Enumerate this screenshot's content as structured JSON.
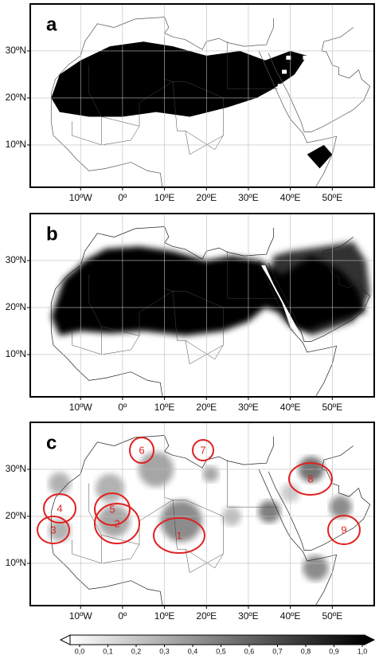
{
  "map": {
    "xlim": [
      -22,
      60
    ],
    "ylim": [
      1,
      40
    ],
    "xticks": [
      {
        "value": -10,
        "label": "10ºW"
      },
      {
        "value": 0,
        "label": "0º"
      },
      {
        "value": 10,
        "label": "10ºE"
      },
      {
        "value": 20,
        "label": "20ºE"
      },
      {
        "value": 30,
        "label": "30ºE"
      },
      {
        "value": 40,
        "label": "40ºE"
      },
      {
        "value": 50,
        "label": "50ºE"
      }
    ],
    "yticks": [
      {
        "value": 10,
        "label": "10ºN"
      },
      {
        "value": 20,
        "label": "20ºN"
      },
      {
        "value": 30,
        "label": "30ºN"
      }
    ]
  },
  "panels": [
    {
      "label": "a"
    },
    {
      "label": "b"
    },
    {
      "label": "c",
      "regions": [
        "1",
        "2",
        "3",
        "4",
        "5",
        "6",
        "7",
        "8",
        "9"
      ]
    }
  ],
  "colorbar": {
    "ticks": [
      {
        "value": 0,
        "label": "0,0"
      },
      {
        "value": 0.1,
        "label": "0,1"
      },
      {
        "value": 0.2,
        "label": "0,2"
      },
      {
        "value": 0.3,
        "label": "0,3"
      },
      {
        "value": 0.4,
        "label": "0,4"
      },
      {
        "value": 0.5,
        "label": "0,5"
      },
      {
        "value": 0.6,
        "label": "0,6"
      },
      {
        "value": 0.7,
        "label": "0,7"
      },
      {
        "value": 0.8,
        "label": "0,8"
      },
      {
        "value": 0.9,
        "label": "0,9"
      },
      {
        "value": 1,
        "label": "1,0"
      }
    ]
  }
}
